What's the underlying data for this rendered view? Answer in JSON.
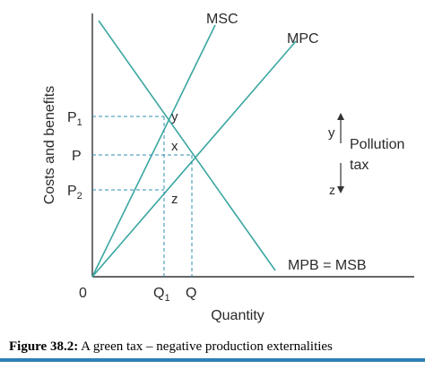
{
  "diagram": {
    "y_axis_label": "Costs and benefits",
    "x_axis_label": "Quantity",
    "origin": "0",
    "curves": {
      "msc": "MSC",
      "mpc": "MPC",
      "mpb_msb": "MPB = MSB"
    },
    "price_labels": {
      "p1": "P",
      "p1_sub": "1",
      "p": "P",
      "p2": "P",
      "p2_sub": "2"
    },
    "quantity_labels": {
      "q1": "Q",
      "q1_sub": "1",
      "q": "Q"
    },
    "points": {
      "y": "y",
      "x": "x",
      "z": "z"
    },
    "tax_indicator": {
      "top": "y",
      "bottom": "z",
      "line1": "Pollution",
      "line2": "tax"
    },
    "colors": {
      "curve": "#3aa6a1",
      "axis": "#333333",
      "guide": "#2f8fb0"
    }
  },
  "caption": {
    "number": "Figure 38.2:",
    "text": "A green tax – negative production externalities"
  }
}
